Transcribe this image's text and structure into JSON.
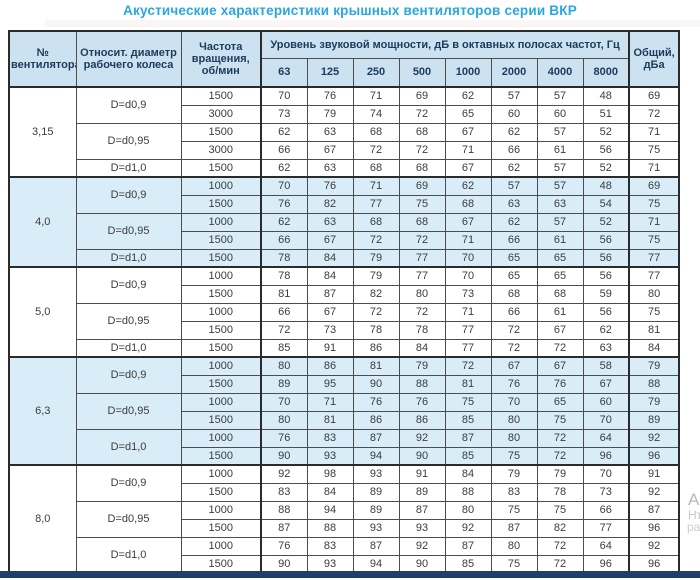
{
  "title": "Акустические характеристики крышных вентиляторов серии ВКР",
  "colors": {
    "title": "#29a8df",
    "header-bg": "#cde2f0",
    "header-text": "#1c3a5c",
    "row-highlight": "#d9edf8",
    "bottom-bar": "#20406a",
    "border": "#4d4d4d"
  },
  "watermark": {
    "fragments": [
      "Ак",
      "Нт",
      "ра"
    ]
  },
  "table": {
    "headers": {
      "fan_number": "№ вентилятора",
      "diameter": "Относит. диаметр рабочего колеса",
      "speed": "Частота вращения, об/мин",
      "sound_power": "Уровень звуковой мощности, дБ в октавных полосах частот, Гц",
      "frequencies": [
        "63",
        "125",
        "250",
        "500",
        "1000",
        "2000",
        "4000",
        "8000"
      ],
      "total": "Общий, дБа"
    },
    "groups": [
      {
        "fan": "3,15",
        "highlight": false,
        "subgroups": [
          {
            "diameter": "D=d0,9",
            "rows": [
              {
                "speed": "1500",
                "levels": [
                  70,
                  76,
                  71,
                  69,
                  62,
                  57,
                  57,
                  48
                ],
                "total": 69
              },
              {
                "speed": "3000",
                "levels": [
                  73,
                  79,
                  74,
                  72,
                  65,
                  60,
                  60,
                  51
                ],
                "total": 72
              }
            ]
          },
          {
            "diameter": "D=d0,95",
            "rows": [
              {
                "speed": "1500",
                "levels": [
                  62,
                  63,
                  68,
                  68,
                  67,
                  62,
                  57,
                  52
                ],
                "total": 71
              },
              {
                "speed": "3000",
                "levels": [
                  66,
                  67,
                  72,
                  72,
                  71,
                  66,
                  61,
                  56
                ],
                "total": 75
              }
            ]
          },
          {
            "diameter": "D=d1,0",
            "rows": [
              {
                "speed": "1500",
                "levels": [
                  62,
                  63,
                  68,
                  68,
                  67,
                  62,
                  57,
                  52
                ],
                "total": 71
              }
            ]
          }
        ]
      },
      {
        "fan": "4,0",
        "highlight": true,
        "subgroups": [
          {
            "diameter": "D=d0,9",
            "rows": [
              {
                "speed": "1000",
                "levels": [
                  70,
                  76,
                  71,
                  69,
                  62,
                  57,
                  57,
                  48
                ],
                "total": 69
              },
              {
                "speed": "1500",
                "levels": [
                  76,
                  82,
                  77,
                  75,
                  68,
                  63,
                  63,
                  54
                ],
                "total": 75
              }
            ]
          },
          {
            "diameter": "D=d0,95",
            "rows": [
              {
                "speed": "1000",
                "levels": [
                  62,
                  63,
                  68,
                  68,
                  67,
                  62,
                  57,
                  52
                ],
                "total": 71
              },
              {
                "speed": "1500",
                "levels": [
                  66,
                  67,
                  72,
                  72,
                  71,
                  66,
                  61,
                  56
                ],
                "total": 75
              }
            ]
          },
          {
            "diameter": "D=d1,0",
            "rows": [
              {
                "speed": "1500",
                "levels": [
                  78,
                  84,
                  79,
                  77,
                  70,
                  65,
                  65,
                  56
                ],
                "total": 77
              }
            ]
          }
        ]
      },
      {
        "fan": "5,0",
        "highlight": false,
        "subgroups": [
          {
            "diameter": "D=d0,9",
            "rows": [
              {
                "speed": "1000",
                "levels": [
                  78,
                  84,
                  79,
                  77,
                  70,
                  65,
                  65,
                  56
                ],
                "total": 77
              },
              {
                "speed": "1500",
                "levels": [
                  81,
                  87,
                  82,
                  80,
                  73,
                  68,
                  68,
                  59
                ],
                "total": 80
              }
            ]
          },
          {
            "diameter": "D=d0,95",
            "rows": [
              {
                "speed": "1000",
                "levels": [
                  66,
                  67,
                  72,
                  72,
                  71,
                  66,
                  61,
                  56
                ],
                "total": 75
              },
              {
                "speed": "1500",
                "levels": [
                  72,
                  73,
                  78,
                  78,
                  77,
                  72,
                  67,
                  62
                ],
                "total": 81
              }
            ]
          },
          {
            "diameter": "D=d1,0",
            "rows": [
              {
                "speed": "1500",
                "levels": [
                  85,
                  91,
                  86,
                  84,
                  77,
                  72,
                  72,
                  63
                ],
                "total": 84
              }
            ]
          }
        ]
      },
      {
        "fan": "6,3",
        "highlight": true,
        "subgroups": [
          {
            "diameter": "D=d0,9",
            "rows": [
              {
                "speed": "1000",
                "levels": [
                  80,
                  86,
                  81,
                  79,
                  72,
                  67,
                  67,
                  58
                ],
                "total": 79
              },
              {
                "speed": "1500",
                "levels": [
                  89,
                  95,
                  90,
                  88,
                  81,
                  76,
                  76,
                  67
                ],
                "total": 88
              }
            ]
          },
          {
            "diameter": "D=d0,95",
            "rows": [
              {
                "speed": "1000",
                "levels": [
                  70,
                  71,
                  76,
                  76,
                  75,
                  70,
                  65,
                  60
                ],
                "total": 79
              },
              {
                "speed": "1500",
                "levels": [
                  80,
                  81,
                  86,
                  86,
                  85,
                  80,
                  75,
                  70
                ],
                "total": 89
              }
            ]
          },
          {
            "diameter": "D=d1,0",
            "rows": [
              {
                "speed": "1000",
                "levels": [
                  76,
                  83,
                  87,
                  92,
                  87,
                  80,
                  72,
                  64
                ],
                "total": 92
              },
              {
                "speed": "1500",
                "levels": [
                  90,
                  93,
                  94,
                  90,
                  85,
                  75,
                  72,
                  96
                ],
                "total": 96
              }
            ]
          }
        ]
      },
      {
        "fan": "8,0",
        "highlight": false,
        "subgroups": [
          {
            "diameter": "D=d0,9",
            "rows": [
              {
                "speed": "1000",
                "levels": [
                  92,
                  98,
                  93,
                  91,
                  84,
                  79,
                  79,
                  70
                ],
                "total": 91
              },
              {
                "speed": "1500",
                "levels": [
                  83,
                  84,
                  89,
                  89,
                  88,
                  83,
                  78,
                  73
                ],
                "total": 92
              }
            ]
          },
          {
            "diameter": "D=d0,95",
            "rows": [
              {
                "speed": "1000",
                "levels": [
                  88,
                  94,
                  89,
                  87,
                  80,
                  75,
                  75,
                  66
                ],
                "total": 87
              },
              {
                "speed": "1500",
                "levels": [
                  87,
                  88,
                  93,
                  93,
                  92,
                  87,
                  82,
                  77
                ],
                "total": 96
              }
            ]
          },
          {
            "diameter": "D=d1,0",
            "rows": [
              {
                "speed": "1000",
                "levels": [
                  76,
                  83,
                  87,
                  92,
                  87,
                  80,
                  72,
                  64
                ],
                "total": 92
              },
              {
                "speed": "1500",
                "levels": [
                  90,
                  93,
                  94,
                  90,
                  85,
                  75,
                  72,
                  96
                ],
                "total": 96
              }
            ]
          }
        ]
      }
    ]
  }
}
